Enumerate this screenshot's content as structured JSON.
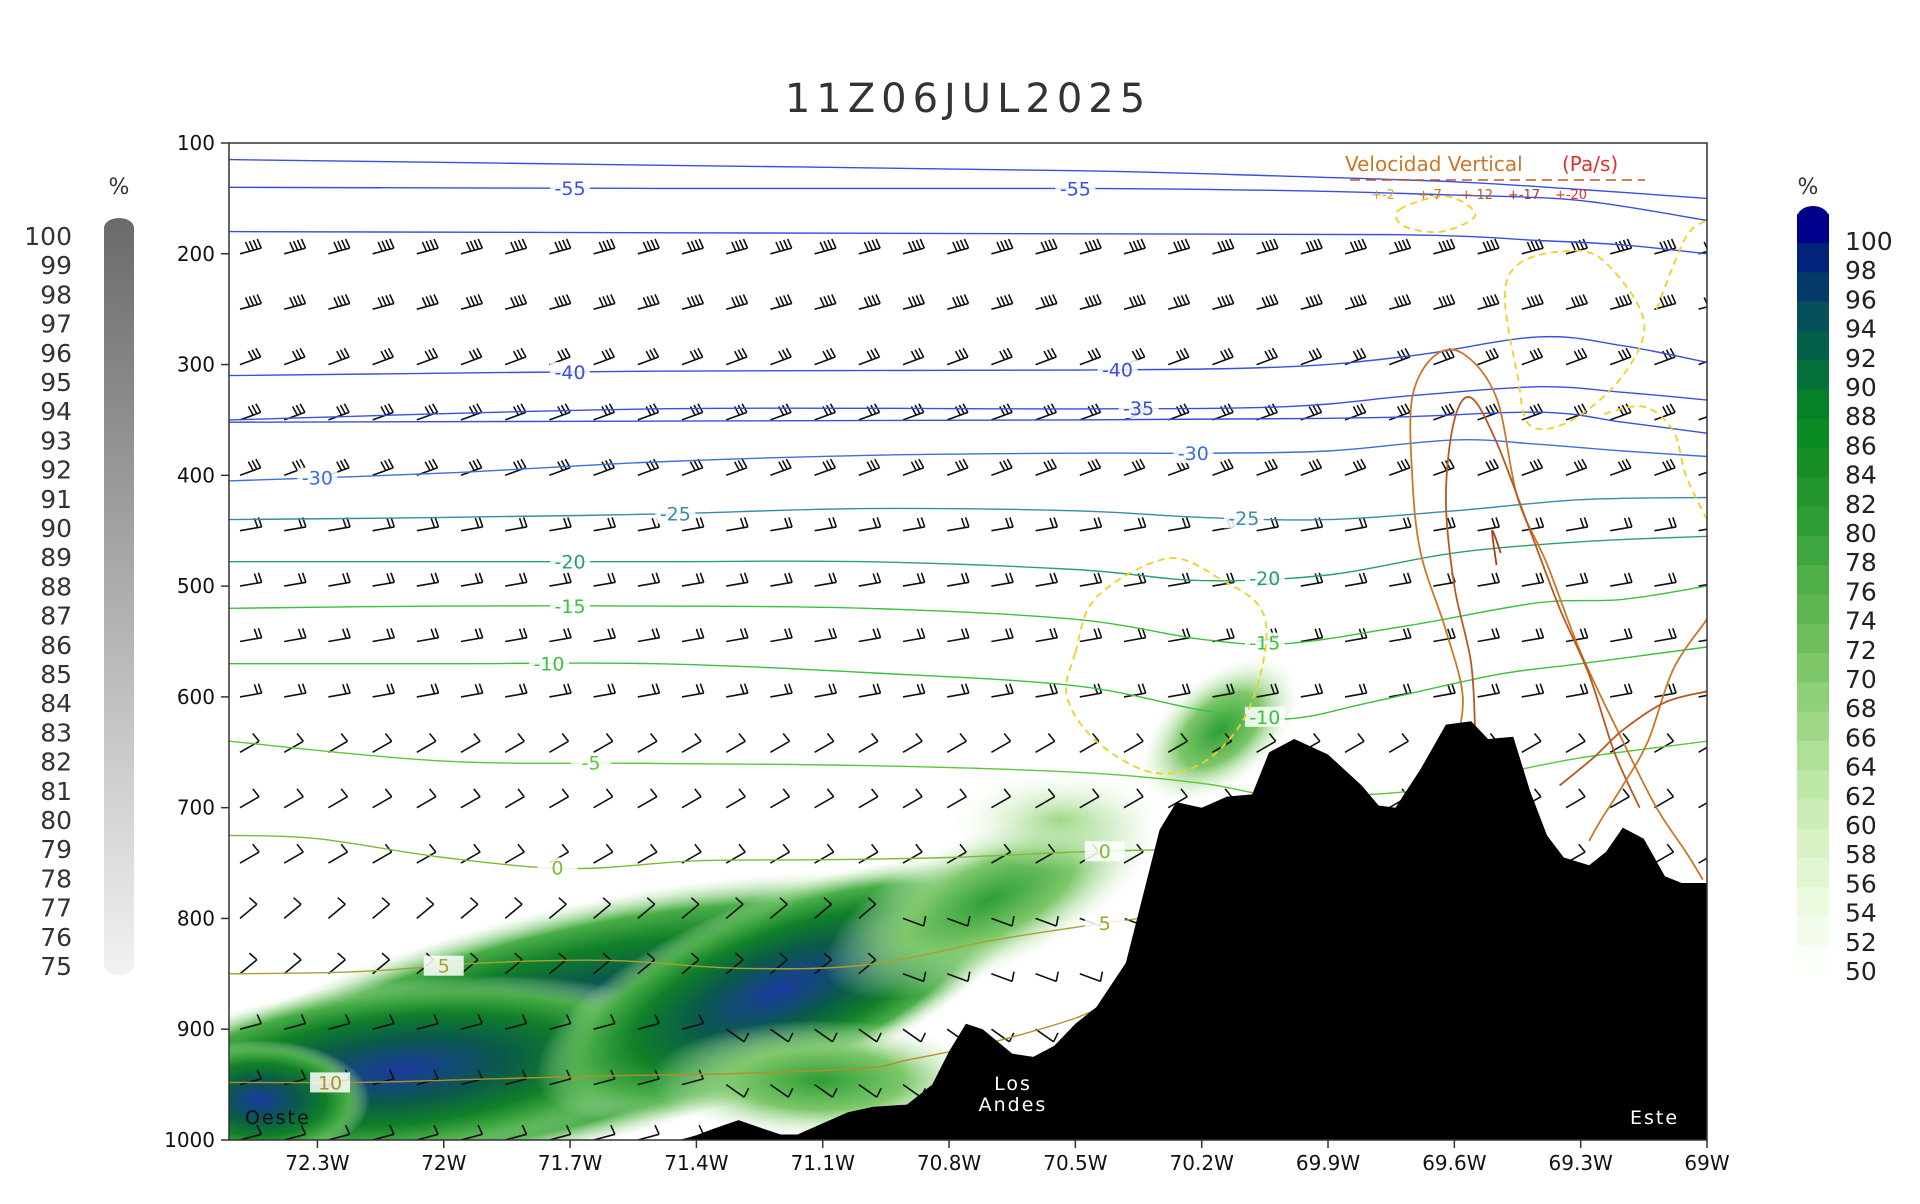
{
  "chart_data": {
    "type": "cross-section",
    "title": "11Z06JUL2025",
    "x_axis": {
      "ticks": [
        "72.3W",
        "72W",
        "71.7W",
        "71.4W",
        "71.1W",
        "70.8W",
        "70.5W",
        "70.2W",
        "69.9W",
        "69.6W",
        "69.3W",
        "69W"
      ],
      "tick_values": [
        -72.3,
        -72.0,
        -71.7,
        -71.4,
        -71.1,
        -70.8,
        -70.5,
        -70.2,
        -69.9,
        -69.6,
        -69.3,
        -69.0
      ],
      "range": [
        -72.51,
        -69.0
      ]
    },
    "y_axis": {
      "ticks": [
        "100",
        "200",
        "300",
        "400",
        "500",
        "600",
        "700",
        "800",
        "900",
        "1000"
      ],
      "range": [
        100,
        1000
      ],
      "inverted": true
    },
    "annotations": {
      "west": "Oeste",
      "east": "Este",
      "andes_line1": "Los",
      "andes_line2": "Andes"
    },
    "vertical_velocity_legend": {
      "title": "Velocidad Vertical",
      "unit": "(Pa/s)",
      "levels": [
        "+-2",
        "+-7",
        "+-12",
        "+-17",
        "+-20"
      ],
      "colors": [
        "#d4a23a",
        "#c87828",
        "#b85820",
        "#a83a18",
        "#e03030"
      ]
    },
    "left_colorbar": {
      "unit": "%",
      "labels": [
        "100",
        "99",
        "98",
        "97",
        "96",
        "95",
        "94",
        "93",
        "92",
        "91",
        "90",
        "89",
        "88",
        "87",
        "86",
        "85",
        "84",
        "83",
        "82",
        "81",
        "80",
        "79",
        "78",
        "77",
        "76",
        "75"
      ],
      "color_top": "#6a6a6a",
      "color_bottom": "#f0f0f0"
    },
    "right_colorbar": {
      "unit": "%",
      "labels": [
        "100",
        "98",
        "96",
        "94",
        "92",
        "90",
        "88",
        "86",
        "84",
        "82",
        "80",
        "78",
        "76",
        "74",
        "72",
        "70",
        "68",
        "66",
        "64",
        "62",
        "60",
        "58",
        "56",
        "54",
        "52",
        "50"
      ],
      "colors": [
        "#00008c",
        "#02237a",
        "#053a68",
        "#06505a",
        "#05604a",
        "#06703a",
        "#07802a",
        "#0a8a22",
        "#168e24",
        "#22962c",
        "#2e9e34",
        "#3ea63e",
        "#4eae48",
        "#5eb652",
        "#6ebe5e",
        "#7ec86a",
        "#8ed078",
        "#9ed886",
        "#aee096",
        "#bee8a6",
        "#cceeb6",
        "#d8f2c4",
        "#e2f6d2",
        "#ecfae0",
        "#f4fcee",
        "#fafffa"
      ]
    },
    "temperature_isotherms": [
      {
        "label": "-55",
        "points": [
          [
            -72.51,
            140
          ],
          [
            -71.5,
            141
          ],
          [
            -70.5,
            141
          ],
          [
            -70.0,
            143
          ],
          [
            -69.6,
            147
          ],
          [
            -69.3,
            152
          ],
          [
            -69.0,
            170
          ]
        ],
        "label_positions": [
          -71.7,
          -70.5
        ]
      },
      {
        "label": "-55",
        "points": [
          [
            -72.51,
            115
          ],
          [
            -71.5,
            120
          ],
          [
            -70.5,
            125
          ],
          [
            -70.0,
            130
          ],
          [
            -69.6,
            135
          ],
          [
            -69.3,
            142
          ],
          [
            -69.0,
            150
          ]
        ],
        "label_positions": []
      },
      {
        "label": "-55",
        "points": [
          [
            -72.51,
            180
          ],
          [
            -70.5,
            182
          ],
          [
            -69.7,
            183
          ],
          [
            -69.4,
            188
          ],
          [
            -69.2,
            192
          ],
          [
            -69.0,
            200
          ]
        ],
        "label_positions": []
      },
      {
        "label": "-40",
        "points": [
          [
            -72.51,
            310
          ],
          [
            -71.5,
            306
          ],
          [
            -70.5,
            305
          ],
          [
            -70.0,
            302
          ],
          [
            -69.7,
            292
          ],
          [
            -69.4,
            275
          ],
          [
            -69.2,
            283
          ],
          [
            -69.0,
            298
          ]
        ],
        "label_positions": [
          -71.7,
          -70.4
        ]
      },
      {
        "label": "-35",
        "points": [
          [
            -72.51,
            350
          ],
          [
            -71.5,
            340
          ],
          [
            -70.5,
            340
          ],
          [
            -70.0,
            338
          ],
          [
            -69.7,
            328
          ],
          [
            -69.4,
            320
          ],
          [
            -69.2,
            325
          ],
          [
            -69.0,
            332
          ]
        ],
        "label_positions": [
          -70.35
        ]
      },
      {
        "label": "-35",
        "points": [
          [
            -72.51,
            352
          ],
          [
            -70.5,
            350
          ],
          [
            -69.8,
            348
          ],
          [
            -69.4,
            343
          ],
          [
            -69.2,
            352
          ],
          [
            -69.0,
            362
          ]
        ],
        "label_positions": []
      },
      {
        "label": "-30",
        "points": [
          [
            -72.51,
            405
          ],
          [
            -72.0,
            398
          ],
          [
            -71.5,
            388
          ],
          [
            -71.0,
            382
          ],
          [
            -70.5,
            380
          ],
          [
            -70.2,
            380
          ],
          [
            -69.9,
            378
          ],
          [
            -69.6,
            368
          ],
          [
            -69.4,
            372
          ],
          [
            -69.2,
            378
          ],
          [
            -69.0,
            383
          ]
        ],
        "label_positions": [
          -72.3,
          -70.22
        ]
      },
      {
        "label": "-25",
        "points": [
          [
            -72.51,
            440
          ],
          [
            -72.0,
            438
          ],
          [
            -71.5,
            435
          ],
          [
            -71.0,
            430
          ],
          [
            -70.5,
            432
          ],
          [
            -70.2,
            438
          ],
          [
            -69.9,
            440
          ],
          [
            -69.6,
            432
          ],
          [
            -69.3,
            422
          ],
          [
            -69.0,
            420
          ]
        ],
        "label_positions": [
          -71.45,
          -70.1
        ]
      },
      {
        "label": "-20",
        "points": [
          [
            -72.51,
            478
          ],
          [
            -72.0,
            478
          ],
          [
            -71.5,
            478
          ],
          [
            -71.0,
            478
          ],
          [
            -70.5,
            485
          ],
          [
            -70.2,
            495
          ],
          [
            -69.9,
            490
          ],
          [
            -69.6,
            470
          ],
          [
            -69.3,
            460
          ],
          [
            -69.0,
            455
          ]
        ],
        "label_positions": [
          -71.7,
          -70.05
        ]
      },
      {
        "label": "-15",
        "points": [
          [
            -72.51,
            520
          ],
          [
            -72.0,
            518
          ],
          [
            -71.5,
            518
          ],
          [
            -71.0,
            520
          ],
          [
            -70.5,
            530
          ],
          [
            -70.2,
            548
          ],
          [
            -70.0,
            552
          ],
          [
            -69.7,
            535
          ],
          [
            -69.4,
            515
          ],
          [
            -69.2,
            512
          ],
          [
            -69.0,
            500
          ]
        ],
        "label_positions": [
          -71.7,
          -70.05
        ]
      },
      {
        "label": "-10",
        "points": [
          [
            -72.51,
            570
          ],
          [
            -72.0,
            570
          ],
          [
            -71.5,
            570
          ],
          [
            -71.0,
            578
          ],
          [
            -70.5,
            590
          ],
          [
            -70.2,
            612
          ],
          [
            -70.0,
            620
          ],
          [
            -69.8,
            605
          ],
          [
            -69.5,
            580
          ],
          [
            -69.3,
            570
          ],
          [
            -69.0,
            555
          ]
        ],
        "label_positions": [
          -71.75,
          -70.05
        ]
      },
      {
        "label": "-5",
        "points": [
          [
            -72.51,
            640
          ],
          [
            -72.0,
            658
          ],
          [
            -71.5,
            660
          ],
          [
            -71.0,
            662
          ],
          [
            -70.5,
            668
          ],
          [
            -70.2,
            678
          ],
          [
            -70.0,
            690
          ],
          [
            -69.7,
            685
          ],
          [
            -69.5,
            670
          ],
          [
            -69.3,
            655
          ],
          [
            -69.0,
            640
          ]
        ],
        "label_positions": [
          -71.65
        ]
      },
      {
        "label": "0",
        "points": [
          [
            -72.51,
            725
          ],
          [
            -72.3,
            728
          ],
          [
            -72.0,
            745
          ],
          [
            -71.7,
            755
          ],
          [
            -71.4,
            748
          ],
          [
            -71.1,
            747
          ],
          [
            -70.8,
            745
          ],
          [
            -70.5,
            740
          ],
          [
            -70.3,
            738
          ]
        ],
        "label_positions": [
          -71.73,
          -70.43
        ]
      },
      {
        "label": "5",
        "points": [
          [
            -72.51,
            850
          ],
          [
            -72.2,
            848
          ],
          [
            -71.9,
            840
          ],
          [
            -71.6,
            838
          ],
          [
            -71.3,
            845
          ],
          [
            -71.0,
            842
          ],
          [
            -70.7,
            820
          ],
          [
            -70.5,
            808
          ],
          [
            -70.35,
            800
          ]
        ],
        "label_positions": [
          -72.0,
          -70.43
        ]
      },
      {
        "label": "10",
        "points": [
          [
            -72.51,
            948
          ],
          [
            -72.2,
            948
          ],
          [
            -71.9,
            945
          ],
          [
            -71.6,
            942
          ],
          [
            -71.3,
            940
          ],
          [
            -71.0,
            935
          ],
          [
            -70.9,
            928
          ],
          [
            -70.7,
            912
          ],
          [
            -70.5,
            890
          ],
          [
            -70.42,
            875
          ]
        ],
        "label_positions": [
          -72.27
        ]
      }
    ],
    "vertical_velocity_contours": [
      {
        "level": "+-2",
        "points": [
          [
            -70.5,
            560
          ],
          [
            -70.45,
            510
          ],
          [
            -70.28,
            475
          ],
          [
            -70.15,
            495
          ],
          [
            -70.06,
            520
          ],
          [
            -70.05,
            560
          ],
          [
            -70.1,
            620
          ],
          [
            -70.2,
            660
          ],
          [
            -70.32,
            668
          ],
          [
            -70.45,
            640
          ],
          [
            -70.52,
            600
          ]
        ]
      },
      {
        "level": "+-2",
        "points": [
          [
            -69.73,
            160
          ],
          [
            -69.62,
            148
          ],
          [
            -69.55,
            165
          ],
          [
            -69.63,
            180
          ],
          [
            -69.72,
            175
          ]
        ]
      },
      {
        "level": "+-2",
        "points": [
          [
            -69.45,
            210
          ],
          [
            -69.35,
            198
          ],
          [
            -69.25,
            205
          ],
          [
            -69.15,
            260
          ],
          [
            -69.2,
            310
          ],
          [
            -69.32,
            350
          ],
          [
            -69.42,
            355
          ],
          [
            -69.45,
            310
          ],
          [
            -69.48,
            240
          ]
        ]
      },
      {
        "level": "+-2",
        "points": [
          [
            -69.12,
            250
          ],
          [
            -69.05,
            185
          ],
          [
            -69.0,
            170
          ]
        ]
      },
      {
        "level": "+-2",
        "points": [
          [
            -69.0,
            440
          ],
          [
            -69.05,
            400
          ],
          [
            -69.08,
            360
          ],
          [
            -69.15,
            338
          ],
          [
            -69.25,
            345
          ]
        ]
      },
      {
        "level": "+-7",
        "points": [
          [
            -69.6,
            650
          ],
          [
            -69.58,
            600
          ],
          [
            -69.62,
            540
          ],
          [
            -69.68,
            470
          ],
          [
            -69.7,
            400
          ],
          [
            -69.7,
            330
          ],
          [
            -69.65,
            293
          ],
          [
            -69.58,
            290
          ],
          [
            -69.5,
            330
          ],
          [
            -69.45,
            420
          ],
          [
            -69.38,
            480
          ],
          [
            -69.3,
            560
          ],
          [
            -69.2,
            640
          ],
          [
            -69.12,
            700
          ],
          [
            -69.05,
            740
          ],
          [
            -69.01,
            765
          ]
        ]
      },
      {
        "level": "+-12",
        "points": [
          [
            -69.55,
            640
          ],
          [
            -69.56,
            570
          ],
          [
            -69.6,
            500
          ],
          [
            -69.62,
            420
          ],
          [
            -69.6,
            350
          ],
          [
            -69.56,
            330
          ],
          [
            -69.5,
            370
          ],
          [
            -69.42,
            450
          ],
          [
            -69.35,
            520
          ],
          [
            -69.28,
            580
          ],
          [
            -69.22,
            650
          ],
          [
            -69.16,
            700
          ]
        ]
      },
      {
        "level": "+-17",
        "points": [
          [
            -69.5,
            481
          ],
          [
            -69.51,
            450
          ],
          [
            -69.49,
            470
          ]
        ]
      },
      {
        "level": "+-7",
        "points": [
          [
            -69.28,
            730
          ],
          [
            -69.25,
            710
          ],
          [
            -69.2,
            680
          ],
          [
            -69.14,
            640
          ],
          [
            -69.08,
            575
          ],
          [
            -69.0,
            530
          ]
        ]
      },
      {
        "level": "+-12",
        "points": [
          [
            -69.35,
            680
          ],
          [
            -69.27,
            655
          ],
          [
            -69.2,
            630
          ],
          [
            -69.1,
            605
          ],
          [
            -69.0,
            595
          ]
        ]
      }
    ],
    "terrain": {
      "x": [
        -71.43,
        -71.36,
        -71.3,
        -71.24,
        -71.2,
        -71.16,
        -71.1,
        -71.04,
        -70.98,
        -70.9,
        -70.84,
        -70.8,
        -70.76,
        -70.72,
        -70.65,
        -70.6,
        -70.55,
        -70.5,
        -70.45,
        -70.38,
        -70.3,
        -70.26,
        -70.2,
        -70.14,
        -70.08,
        -70.04,
        -69.98,
        -69.9,
        -69.82,
        -69.78,
        -69.74,
        -69.68,
        -69.62,
        -69.56,
        -69.52,
        -69.46,
        -69.42,
        -69.38,
        -69.34,
        -69.28,
        -69.24,
        -69.2,
        -69.15,
        -69.1,
        -69.06,
        -69.0
      ],
      "pressure_hPa": [
        1000,
        990,
        982,
        990,
        995,
        995,
        985,
        975,
        970,
        968,
        950,
        920,
        895,
        900,
        922,
        925,
        915,
        895,
        880,
        840,
        720,
        695,
        700,
        690,
        688,
        650,
        638,
        652,
        680,
        698,
        700,
        665,
        625,
        622,
        638,
        636,
        685,
        725,
        745,
        752,
        740,
        718,
        728,
        762,
        768,
        768
      ]
    }
  }
}
